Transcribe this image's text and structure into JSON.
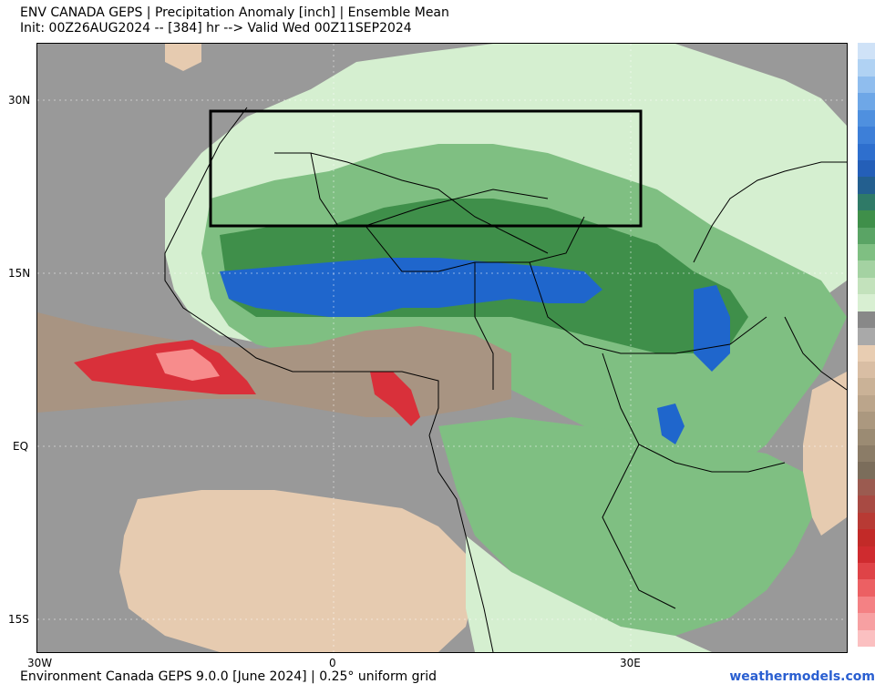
{
  "header": {
    "title_line1": "ENV CANADA GEPS | Precipitation Anomaly [inch] | Ensemble Mean",
    "title_line2": "Init: 00Z26AUG2024 -- [384] hr --> Valid Wed 00Z11SEP2024"
  },
  "map": {
    "lat_labels": [
      "30N",
      "15N",
      "EQ",
      "15S"
    ],
    "lon_labels": [
      "30W",
      "0",
      "30E"
    ],
    "colors": {
      "ocean_gray": "#999999",
      "dark_green": "#3f8f4a",
      "mid_green": "#7fbf82",
      "light_green": "#d5efd0",
      "blue": "#1f66cc",
      "tan": "#e6cbb0",
      "brown": "#a89482",
      "red": "#d9303a",
      "pink": "#f78c8c"
    },
    "highlight_box": "analysis region outline"
  },
  "colorbar": {
    "colors": [
      "#cfe2f7",
      "#b0d2f3",
      "#8fbdee",
      "#6ea7e7",
      "#4f90df",
      "#3d7fd8",
      "#2e6fce",
      "#245fb8",
      "#235f8f",
      "#2f7a67",
      "#3f8f4a",
      "#5aa465",
      "#7fbf82",
      "#a4d2a2",
      "#c3e2bc",
      "#d8efd2",
      "#888888",
      "#a9a9a9",
      "#e8cdb2",
      "#d9bea4",
      "#cab297",
      "#bba58b",
      "#ab987f",
      "#9b8b73",
      "#8b7c67",
      "#7b6d5b",
      "#9b5b50",
      "#a84a43",
      "#b83a34",
      "#c22a28",
      "#cf2b2f",
      "#df4347",
      "#ec6063",
      "#f48184",
      "#f7a0a2",
      "#fbc0c1"
    ]
  },
  "footer": {
    "model_info": "Environment Canada GEPS 9.0.0 [June 2024] | 0.25° uniform grid",
    "site": "weathermodels.com"
  }
}
